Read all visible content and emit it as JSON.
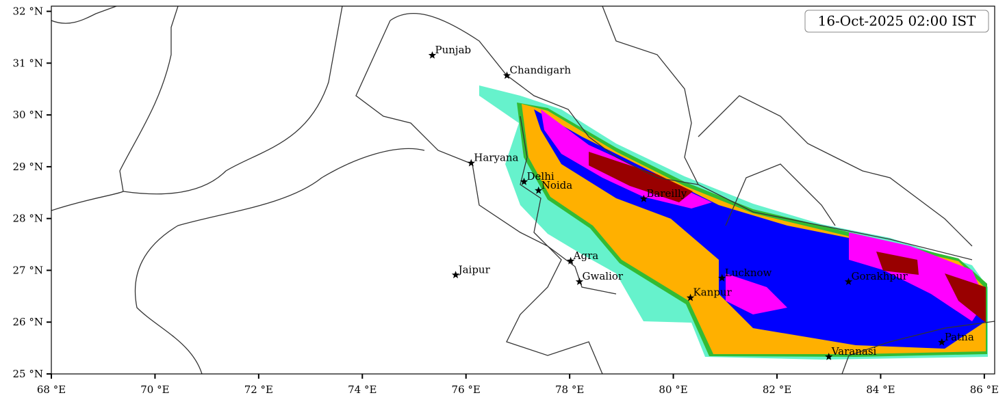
{
  "timestamp": "16-Oct-2025 02:00 IST",
  "map": {
    "xlim": [
      68,
      86.2
    ],
    "ylim": [
      25,
      32.1
    ],
    "xticks": [
      {
        "value": 68,
        "label": "68 °E"
      },
      {
        "value": 70,
        "label": "70 °E"
      },
      {
        "value": 72,
        "label": "72 °E"
      },
      {
        "value": 74,
        "label": "74 °E"
      },
      {
        "value": 76,
        "label": "76 °E"
      },
      {
        "value": 78,
        "label": "78 °E"
      },
      {
        "value": 80,
        "label": "80 °E"
      },
      {
        "value": 82,
        "label": "82 °E"
      },
      {
        "value": 84,
        "label": "84 °E"
      },
      {
        "value": 86,
        "label": "86 °E"
      }
    ],
    "yticks": [
      {
        "value": 25,
        "label": "25 °N"
      },
      {
        "value": 26,
        "label": "26 °N"
      },
      {
        "value": 27,
        "label": "27 °N"
      },
      {
        "value": 28,
        "label": "28 °N"
      },
      {
        "value": 29,
        "label": "29 °N"
      },
      {
        "value": 30,
        "label": "30 °N"
      },
      {
        "value": 31,
        "label": "31 °N"
      },
      {
        "value": 32,
        "label": "32 °N"
      }
    ],
    "cities": [
      {
        "name": "Punjab",
        "lon": 75.35,
        "lat": 31.15
      },
      {
        "name": "Chandigarh",
        "lon": 76.79,
        "lat": 30.76
      },
      {
        "name": "Haryana",
        "lon": 76.1,
        "lat": 29.07
      },
      {
        "name": "Delhi",
        "lon": 77.12,
        "lat": 28.71
      },
      {
        "name": "Noida",
        "lon": 77.4,
        "lat": 28.54
      },
      {
        "name": "Bareilly",
        "lon": 79.43,
        "lat": 28.38
      },
      {
        "name": "Jaipur",
        "lon": 75.8,
        "lat": 26.91
      },
      {
        "name": "Agra",
        "lon": 78.02,
        "lat": 27.18
      },
      {
        "name": "Gwalior",
        "lon": 78.19,
        "lat": 26.78
      },
      {
        "name": "Lucknow",
        "lon": 80.94,
        "lat": 26.85
      },
      {
        "name": "Kanpur",
        "lon": 80.33,
        "lat": 26.47
      },
      {
        "name": "Gorakhpur",
        "lon": 83.38,
        "lat": 26.78
      },
      {
        "name": "Varanasi",
        "lon": 83.0,
        "lat": 25.33
      },
      {
        "name": "Patna",
        "lon": 85.18,
        "lat": 25.61
      }
    ]
  }
}
